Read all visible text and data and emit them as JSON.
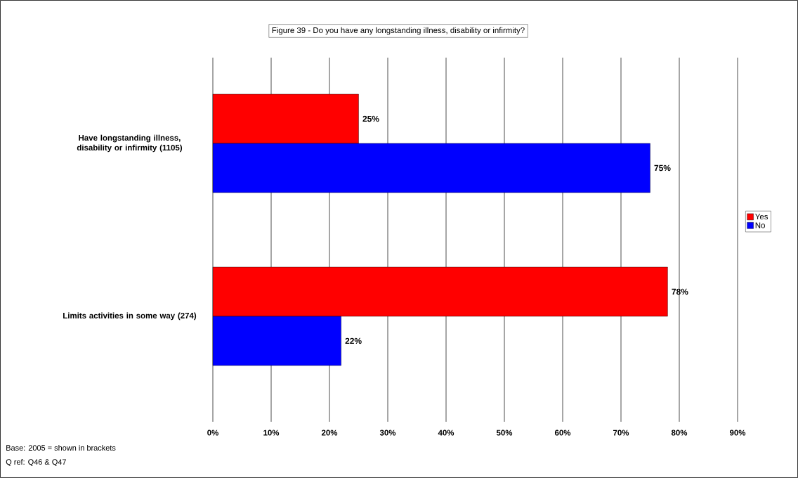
{
  "chart_data": {
    "type": "bar",
    "orientation": "horizontal",
    "title": "Figure 39 - Do you have any longstanding illness, disability or infirmity?",
    "categories": [
      "Have longstanding illness, disability or infirmity (1105)",
      "Limits activities in some way (274)"
    ],
    "series": [
      {
        "name": "Yes",
        "color": "#ff0000",
        "values": [
          25,
          78
        ],
        "value_labels": [
          "25%",
          "78%"
        ]
      },
      {
        "name": "No",
        "color": "#0000ff",
        "values": [
          75,
          22
        ],
        "value_labels": [
          "75%",
          "22%"
        ]
      }
    ],
    "xlim": [
      0,
      90
    ],
    "xticks": [
      {
        "value": 0,
        "label": "0%"
      },
      {
        "value": 10,
        "label": "10%"
      },
      {
        "value": 20,
        "label": "20%"
      },
      {
        "value": 30,
        "label": "30%"
      },
      {
        "value": 40,
        "label": "40%"
      },
      {
        "value": 50,
        "label": "50%"
      },
      {
        "value": 60,
        "label": "60%"
      },
      {
        "value": 70,
        "label": "70%"
      },
      {
        "value": 80,
        "label": "80%"
      },
      {
        "value": 90,
        "label": "90%"
      }
    ],
    "grid": "x",
    "legend": "right",
    "annotations": [
      "Base: 2005 = shown in brackets",
      "Q ref: Q46 & Q47"
    ]
  }
}
